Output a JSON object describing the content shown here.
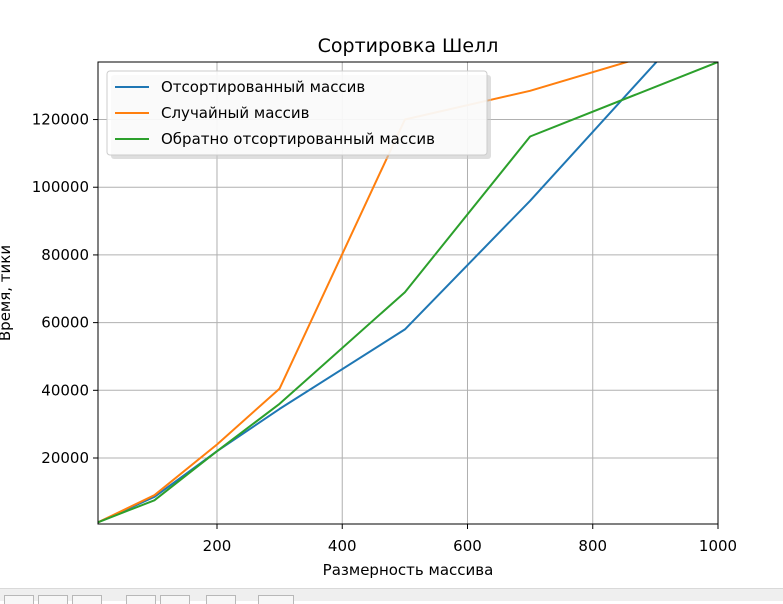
{
  "chart_data": {
    "type": "line",
    "title": "Сортировка Шелл",
    "xlabel": "Размерность массива",
    "ylabel": "Время, тики",
    "xlim": [
      10,
      1000
    ],
    "ylim": [
      500,
      137000
    ],
    "xticks": [
      200,
      400,
      600,
      800,
      1000
    ],
    "yticks": [
      20000,
      40000,
      60000,
      80000,
      100000,
      120000
    ],
    "grid": true,
    "legend_position": "upper-left",
    "series": [
      {
        "name": "Отсортированный массив",
        "color": "#1f77b4",
        "x": [
          10,
          100,
          200,
          300,
          500,
          700,
          1000
        ],
        "y": [
          1000,
          8500,
          22000,
          34500,
          58000,
          96000,
          157000
        ]
      },
      {
        "name": "Случайный массив",
        "color": "#ff7f0e",
        "x": [
          10,
          100,
          200,
          300,
          500,
          700,
          1000
        ],
        "y": [
          1000,
          9000,
          24000,
          40500,
          120000,
          128500,
          145000
        ]
      },
      {
        "name": "Обратно отсортированный массив",
        "color": "#2ca02c",
        "x": [
          10,
          100,
          200,
          300,
          500,
          700,
          1000
        ],
        "y": [
          1000,
          7500,
          22000,
          36000,
          69000,
          115000,
          137000
        ]
      }
    ]
  }
}
